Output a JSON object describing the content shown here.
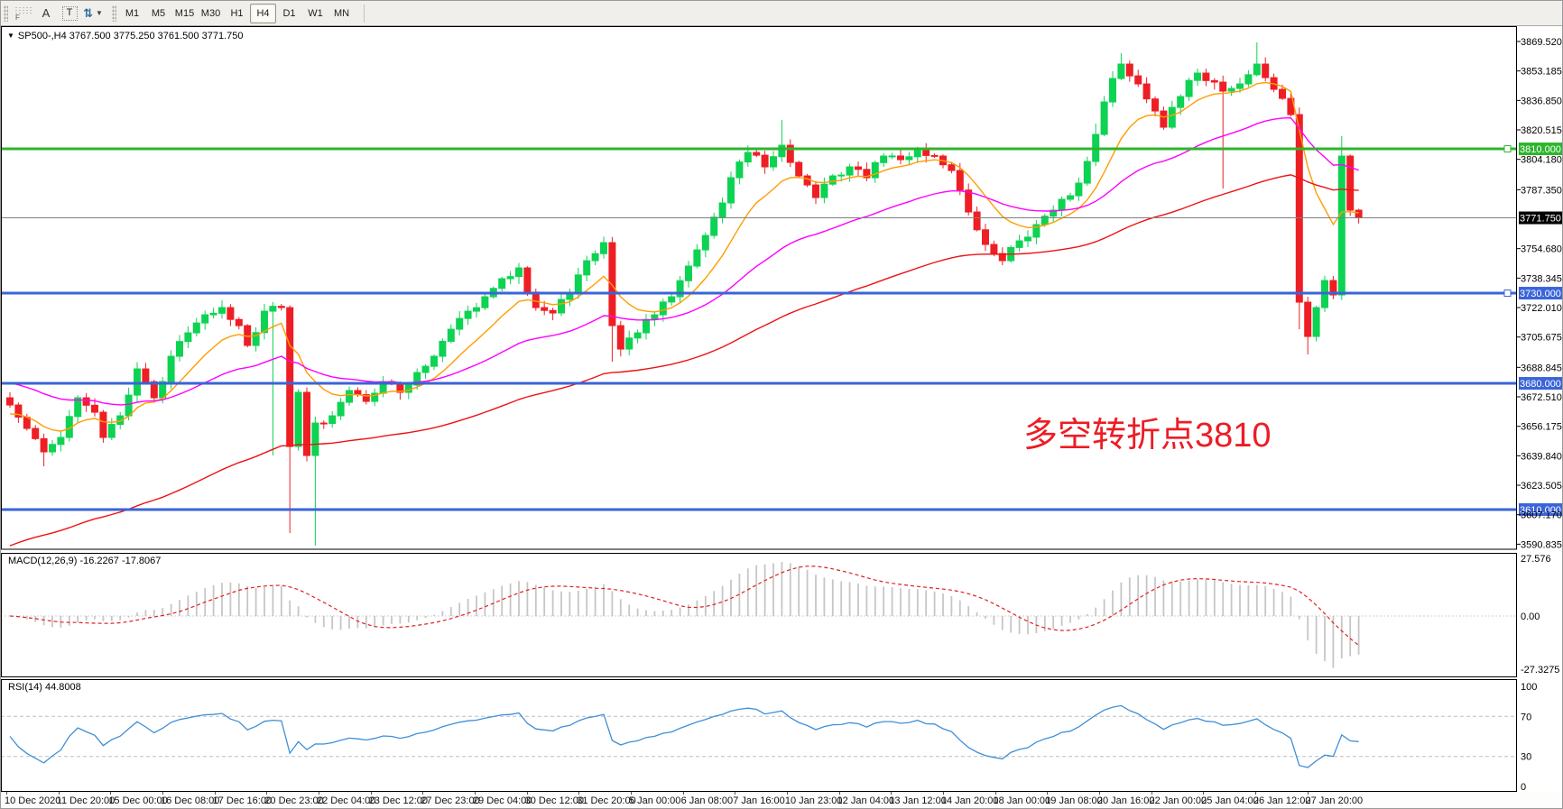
{
  "toolbar": {
    "left_tools": [
      {
        "name": "dotted-grid-f-icon",
        "label": "F"
      },
      {
        "name": "text-label-tool",
        "label": "A"
      },
      {
        "name": "text-box-tool",
        "label": "T"
      },
      {
        "name": "arrows-tool",
        "label": "⇅"
      }
    ],
    "timeframes": [
      "M1",
      "M5",
      "M15",
      "M30",
      "H1",
      "H4",
      "D1",
      "W1",
      "MN"
    ],
    "active_timeframe": "H4"
  },
  "main_chart": {
    "title": "SP500-,H4  3767.500 3775.250 3761.500 3771.750",
    "annotation": {
      "text": "多空转折点3810",
      "color": "#ed1c24"
    },
    "current_price": {
      "label": "3771.750",
      "value": 3771.75,
      "badge_bg": "#000000",
      "badge_fg": "#ffffff",
      "line_color": "#808080"
    },
    "levels": [
      {
        "value": 3810,
        "label": "3810.000",
        "color": "#2db52d",
        "handle": true
      },
      {
        "value": 3730,
        "label": "3730.000",
        "color": "#3a64d8",
        "handle": true
      },
      {
        "value": 3680,
        "label": "3680.000",
        "color": "#3a64d8",
        "handle": false
      },
      {
        "value": 3610,
        "label": "3610.000",
        "color": "#3a64d8",
        "handle": false
      }
    ],
    "price_ticks": [
      "3869.520",
      "3853.185",
      "3836.850",
      "3820.515",
      "3804.180",
      "3787.350",
      "3754.680",
      "3738.345",
      "3722.010",
      "3705.675",
      "3688.845",
      "3672.510",
      "3656.175",
      "3639.840",
      "3623.505",
      "3607.170",
      "3590.835"
    ]
  },
  "macd_panel": {
    "label": "MACD(12,26,9) -16.2267 -17.8067",
    "ticks": [
      "27.576",
      "0.00",
      "-27.3275"
    ],
    "histogram_color": "#c6c6c6",
    "signal_color": "#e02020"
  },
  "rsi_panel": {
    "label": "RSI(14) 44.8008",
    "ticks": [
      {
        "label": "100",
        "value": 100,
        "dashed": false
      },
      {
        "label": "70",
        "value": 70,
        "dashed": true
      },
      {
        "label": "30",
        "value": 30,
        "dashed": true
      },
      {
        "label": "0",
        "value": 0,
        "dashed": false
      }
    ],
    "line_color": "#3f8fd6"
  },
  "time_axis": {
    "labels": [
      "10 Dec 2020",
      "11 Dec 20:00",
      "15 Dec 00:00",
      "16 Dec 08:00",
      "17 Dec 16:00",
      "20 Dec 23:00",
      "22 Dec 04:00",
      "23 Dec 12:00",
      "27 Dec 23:00",
      "29 Dec 04:00",
      "30 Dec 12:00",
      "31 Dec 20:00",
      "5 Jan 00:00",
      "6 Jan 08:00",
      "7 Jan 16:00",
      "10 Jan 23:00",
      "12 Jan 04:00",
      "13 Jan 12:00",
      "14 Jan 20:00",
      "18 Jan 00:00",
      "19 Jan 08:00",
      "20 Jan 16:00",
      "22 Jan 00:00",
      "25 Jan 04:00",
      "26 Jan 12:00",
      "27 Jan 20:00"
    ]
  },
  "chart_data": {
    "type": "candlestick",
    "symbol": "SP500-",
    "timeframe": "H4",
    "last_bar": {
      "open": 3767.5,
      "high": 3775.25,
      "low": 3761.5,
      "close": 3771.75
    },
    "horizontal_levels": [
      3810,
      3730,
      3680,
      3610
    ],
    "macd": {
      "params": [
        12,
        26,
        9
      ],
      "value": -16.2267,
      "signal": -17.8067,
      "axis_max": 27.576,
      "axis_min": -27.3275
    },
    "rsi": {
      "period": 14,
      "value": 44.8008,
      "axis": [
        0,
        30,
        70,
        100
      ]
    },
    "ylim": [
      3588.5,
      3878.5
    ],
    "bars": 160,
    "up_color": "#0dd353",
    "down_color": "#ee1f24",
    "close_anchors": [
      [
        0,
        3668
      ],
      [
        2,
        3655
      ],
      [
        4,
        3642
      ],
      [
        6,
        3650
      ],
      [
        8,
        3672
      ],
      [
        10,
        3664
      ],
      [
        11,
        3650
      ],
      [
        13,
        3662
      ],
      [
        15,
        3688
      ],
      [
        17,
        3672
      ],
      [
        19,
        3695
      ],
      [
        21,
        3708
      ],
      [
        23,
        3718
      ],
      [
        25,
        3722
      ],
      [
        27,
        3712
      ],
      [
        28,
        3701
      ],
      [
        30,
        3720
      ],
      [
        32,
        3722
      ],
      [
        33,
        3645
      ],
      [
        34,
        3675
      ],
      [
        35,
        3640
      ],
      [
        36,
        3658
      ],
      [
        38,
        3662
      ],
      [
        40,
        3676
      ],
      [
        42,
        3670
      ],
      [
        44,
        3681
      ],
      [
        46,
        3675
      ],
      [
        48,
        3686
      ],
      [
        50,
        3695
      ],
      [
        52,
        3710
      ],
      [
        54,
        3720
      ],
      [
        56,
        3728
      ],
      [
        58,
        3738
      ],
      [
        60,
        3744
      ],
      [
        62,
        3722
      ],
      [
        64,
        3719
      ],
      [
        66,
        3730
      ],
      [
        68,
        3748
      ],
      [
        70,
        3758
      ],
      [
        71,
        3712
      ],
      [
        72,
        3699
      ],
      [
        74,
        3708
      ],
      [
        76,
        3718
      ],
      [
        78,
        3728
      ],
      [
        80,
        3745
      ],
      [
        82,
        3762
      ],
      [
        84,
        3780
      ],
      [
        85,
        3794
      ],
      [
        87,
        3808
      ],
      [
        89,
        3800
      ],
      [
        91,
        3812
      ],
      [
        93,
        3795
      ],
      [
        95,
        3783
      ],
      [
        97,
        3795
      ],
      [
        99,
        3800
      ],
      [
        101,
        3794
      ],
      [
        103,
        3806
      ],
      [
        105,
        3804
      ],
      [
        107,
        3810
      ],
      [
        109,
        3806
      ],
      [
        111,
        3798
      ],
      [
        113,
        3775
      ],
      [
        115,
        3757
      ],
      [
        117,
        3748
      ],
      [
        119,
        3759
      ],
      [
        121,
        3768
      ],
      [
        123,
        3776
      ],
      [
        125,
        3784
      ],
      [
        126,
        3791
      ],
      [
        127,
        3803
      ],
      [
        128,
        3818
      ],
      [
        129,
        3836
      ],
      [
        130,
        3849
      ],
      [
        131,
        3857
      ],
      [
        133,
        3846
      ],
      [
        135,
        3831
      ],
      [
        136,
        3822
      ],
      [
        138,
        3839
      ],
      [
        140,
        3852
      ],
      [
        142,
        3847
      ],
      [
        143,
        3842
      ],
      [
        145,
        3846
      ],
      [
        147,
        3857
      ],
      [
        149,
        3843
      ],
      [
        151,
        3829
      ],
      [
        152,
        3725
      ],
      [
        153,
        3706
      ],
      [
        154,
        3722
      ],
      [
        155,
        3737
      ],
      [
        156,
        3729
      ],
      [
        157,
        3806
      ],
      [
        158,
        3776
      ],
      [
        159,
        3771.75
      ]
    ],
    "wick_overrides": {
      "4": {
        "low": 3634
      },
      "31": {
        "low": 3640
      },
      "33": {
        "low": 3597
      },
      "36": {
        "low": 3590
      },
      "71": {
        "low": 3692
      },
      "91": {
        "high": 3826
      },
      "128": {
        "high": 3824
      },
      "131": {
        "high": 3863
      },
      "143": {
        "low": 3788
      },
      "147": {
        "high": 3869
      },
      "152": {
        "low": 3710
      },
      "153": {
        "low": 3696
      },
      "157": {
        "high": 3817
      }
    },
    "moving_averages": [
      {
        "name": "ma-fast",
        "period": 10,
        "color": "#ff9d00",
        "init": 3662
      },
      {
        "name": "ma-medium",
        "period": 34,
        "color": "#ff00ff",
        "init": 3681
      },
      {
        "name": "ma-slow",
        "period": 80,
        "color": "#ee1212",
        "init": 3588
      }
    ]
  }
}
